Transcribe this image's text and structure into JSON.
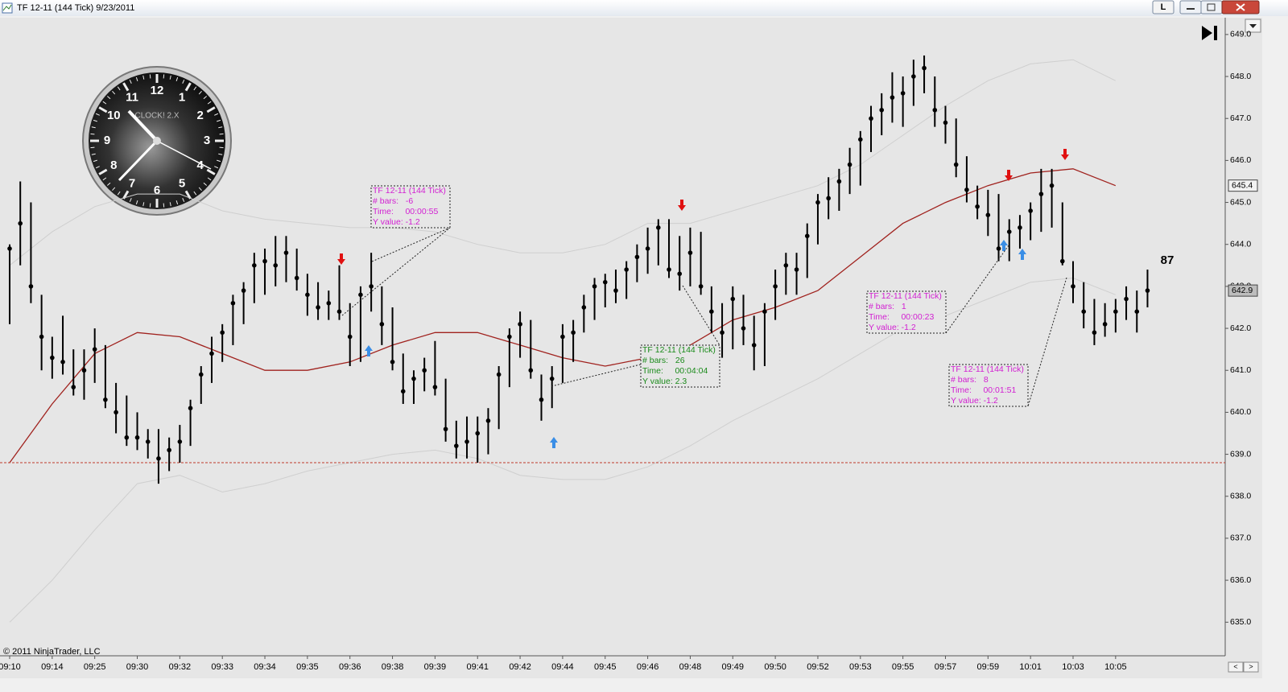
{
  "window_title": "TF 12-11 (144 Tick)  9/23/2011",
  "copyright": "© 2011 NinjaTrader, LLC",
  "clock": {
    "brand": "CLOCK! 2.X",
    "numerals": [
      "12",
      "1",
      "2",
      "3",
      "4",
      "5",
      "6",
      "7",
      "8",
      "9",
      "10",
      "11"
    ]
  },
  "chart_data": {
    "type": "ohlc",
    "categories": [
      "09:10",
      null,
      null,
      null,
      "09:14",
      null,
      null,
      null,
      "09:25",
      null,
      null,
      null,
      "09:30",
      null,
      null,
      null,
      "09:32",
      null,
      null,
      null,
      "09:33",
      null,
      null,
      null,
      "09:34",
      null,
      null,
      null,
      "09:35",
      null,
      null,
      null,
      "09:36",
      null,
      null,
      null,
      "09:38",
      null,
      null,
      null,
      "09:39",
      null,
      null,
      null,
      "09:41",
      null,
      null,
      null,
      "09:42",
      null,
      null,
      null,
      "09:44",
      null,
      null,
      null,
      "09:45",
      null,
      null,
      null,
      "09:46",
      null,
      null,
      null,
      "09:48",
      null,
      null,
      null,
      "09:49",
      null,
      null,
      null,
      "09:50",
      null,
      null,
      null,
      "09:52",
      null,
      null,
      null,
      "09:53",
      null,
      null,
      null,
      "09:55",
      null,
      null,
      null,
      "09:57",
      null,
      null,
      null,
      "09:59",
      null,
      null,
      null,
      "10:01",
      null,
      null,
      null,
      "10:03",
      null,
      null,
      null,
      "10:05",
      null,
      null,
      null
    ],
    "high": [
      644.0,
      645.5,
      645.0,
      642.8,
      641.8,
      642.3,
      641.5,
      641.5,
      642.0,
      641.6,
      640.7,
      640.4,
      640.0,
      639.6,
      639.6,
      639.4,
      639.7,
      640.3,
      641.1,
      641.8,
      642.1,
      642.8,
      643.1,
      643.8,
      643.9,
      644.2,
      644.2,
      643.9,
      643.3,
      643.1,
      642.9,
      643.5,
      642.6,
      643.0,
      643.8,
      643.0,
      642.5,
      641.4,
      641.0,
      641.3,
      641.7,
      640.8,
      639.8,
      639.9,
      639.9,
      640.1,
      641.1,
      642.0,
      642.4,
      642.2,
      640.9,
      641.1,
      642.1,
      642.2,
      642.8,
      643.2,
      643.3,
      643.4,
      643.6,
      644.0,
      644.4,
      644.6,
      644.6,
      644.2,
      644.4,
      644.3,
      643.0,
      642.6,
      643.0,
      642.8,
      642.3,
      642.6,
      643.4,
      643.8,
      643.8,
      644.5,
      645.2,
      645.6,
      645.8,
      646.3,
      646.7,
      647.3,
      647.6,
      648.1,
      648.0,
      648.4,
      648.5,
      648.0,
      647.3,
      647.0,
      646.1,
      645.4,
      645.3,
      645.2,
      644.6,
      644.7,
      645.0,
      645.8,
      645.8,
      645.0,
      643.6,
      643.1,
      642.7,
      642.6,
      642.7,
      643.0,
      642.9,
      643.4
    ],
    "low": [
      642.1,
      643.5,
      642.6,
      641.0,
      640.8,
      640.9,
      640.4,
      640.3,
      640.7,
      640.1,
      639.5,
      639.2,
      639.1,
      638.9,
      638.3,
      638.6,
      638.8,
      639.2,
      640.2,
      640.7,
      641.2,
      641.6,
      642.1,
      642.6,
      642.8,
      643.0,
      643.1,
      642.9,
      642.3,
      642.2,
      642.2,
      642.2,
      641.1,
      641.2,
      642.4,
      641.6,
      641.0,
      640.2,
      640.2,
      640.5,
      640.4,
      639.3,
      638.9,
      638.9,
      638.8,
      639.0,
      639.6,
      640.6,
      641.3,
      640.8,
      639.8,
      640.1,
      640.7,
      641.2,
      641.9,
      642.2,
      642.5,
      642.6,
      642.7,
      643.1,
      643.3,
      643.5,
      643.2,
      642.9,
      643.0,
      642.8,
      641.9,
      641.3,
      641.5,
      641.6,
      641.0,
      641.1,
      642.2,
      642.8,
      642.8,
      643.2,
      644.0,
      644.6,
      644.8,
      645.2,
      645.4,
      646.2,
      646.6,
      646.9,
      646.8,
      647.3,
      647.6,
      646.8,
      646.4,
      645.6,
      645.0,
      644.6,
      644.2,
      643.6,
      643.6,
      643.9,
      644.1,
      644.3,
      644.4,
      643.5,
      642.6,
      642.0,
      641.6,
      641.8,
      641.9,
      642.2,
      641.9,
      642.5
    ],
    "close": [
      643.9,
      644.5,
      643.0,
      641.8,
      641.3,
      641.2,
      640.6,
      641.0,
      641.5,
      640.3,
      640.0,
      639.4,
      639.4,
      639.3,
      638.9,
      639.1,
      639.3,
      640.1,
      640.9,
      641.4,
      641.9,
      642.6,
      642.9,
      643.5,
      643.6,
      643.5,
      643.8,
      643.2,
      642.8,
      642.5,
      642.6,
      642.4,
      641.8,
      642.8,
      643.0,
      642.1,
      641.2,
      640.5,
      640.8,
      641.0,
      640.6,
      639.6,
      639.2,
      639.3,
      639.5,
      639.8,
      640.9,
      641.8,
      642.1,
      641.0,
      640.3,
      640.8,
      641.8,
      641.9,
      642.5,
      643.0,
      643.1,
      642.9,
      643.4,
      643.7,
      643.9,
      644.4,
      643.4,
      643.3,
      643.8,
      643.0,
      642.4,
      641.9,
      642.7,
      642.0,
      641.6,
      642.4,
      643.0,
      643.5,
      643.4,
      644.2,
      645.0,
      645.1,
      645.5,
      645.9,
      646.5,
      647.0,
      647.2,
      647.5,
      647.6,
      648.0,
      648.2,
      647.2,
      646.9,
      645.9,
      645.3,
      644.9,
      644.7,
      643.9,
      644.3,
      644.4,
      644.8,
      645.2,
      645.4,
      643.6,
      643.0,
      642.4,
      641.9,
      642.1,
      642.4,
      642.7,
      642.4,
      642.9
    ],
    "overlay_x": [
      0,
      4,
      8,
      12,
      16,
      20,
      24,
      28,
      32,
      36,
      40,
      44,
      48,
      52,
      56,
      60,
      64,
      68,
      72,
      76,
      80,
      84,
      88,
      92,
      96,
      100,
      104
    ],
    "overlays": [
      {
        "color": "#cfcfcf",
        "values": [
          643.5,
          644.3,
          644.9,
          645.2,
          645.2,
          644.8,
          644.6,
          644.5,
          644.4,
          644.4,
          644.3,
          644.0,
          643.8,
          643.8,
          644.0,
          644.5,
          644.5,
          644.8,
          645.1,
          645.4,
          645.9,
          646.6,
          647.3,
          647.9,
          648.3,
          648.4,
          647.9
        ]
      },
      {
        "color": "#cfcfcf",
        "values": [
          635.0,
          636.0,
          637.2,
          638.3,
          638.5,
          638.1,
          638.3,
          638.6,
          638.8,
          639.0,
          639.1,
          638.9,
          638.5,
          638.4,
          638.4,
          638.7,
          639.2,
          639.8,
          640.3,
          640.8,
          641.4,
          642.0,
          642.3,
          642.7,
          643.1,
          643.2,
          642.8
        ]
      },
      {
        "color": "#a0221e",
        "values": [
          638.8,
          640.2,
          641.4,
          641.9,
          641.8,
          641.4,
          641.0,
          641.0,
          641.2,
          641.6,
          641.9,
          641.9,
          641.6,
          641.3,
          641.1,
          641.3,
          641.6,
          642.2,
          642.5,
          642.9,
          643.7,
          644.5,
          645.0,
          645.4,
          645.7,
          645.8,
          645.4
        ]
      }
    ],
    "hline": 638.8,
    "hline_color": "#c0392b",
    "bar_color": "#000000",
    "ylim": [
      634.2,
      649.4
    ],
    "yticks": [
      {
        "value": 649,
        "label": "649.0"
      },
      {
        "value": 648,
        "label": "648.0"
      },
      {
        "value": 647,
        "label": "647.0"
      },
      {
        "value": 646,
        "label": "646.0"
      },
      {
        "value": 645,
        "label": "645.0"
      },
      {
        "value": 644,
        "label": "644.0"
      },
      {
        "value": 643,
        "label": "643.0"
      },
      {
        "value": 642,
        "label": "642.0"
      },
      {
        "value": 641,
        "label": "641.0"
      },
      {
        "value": 640,
        "label": "640.0"
      },
      {
        "value": 639,
        "label": "639.0"
      },
      {
        "value": 638,
        "label": "638.0"
      },
      {
        "value": 637,
        "label": "637.0"
      },
      {
        "value": 636,
        "label": "636.0"
      },
      {
        "value": 635,
        "label": "635.0"
      }
    ],
    "price_markers": [
      645.4,
      642.9
    ],
    "counter": 87,
    "annotations": [
      {
        "color": "#d21fd2",
        "lines": [
          "TF 12-11 (144 Tick)",
          "# bars:   -6",
          "Time:     00:00:55",
          "Y value: -1.2"
        ]
      },
      {
        "color": "#1a8a1a",
        "lines": [
          "TF 12-11 (144 Tick)",
          "# bars:   26",
          "Time:     00:04:04",
          "Y value: 2.3"
        ]
      },
      {
        "color": "#d21fd2",
        "lines": [
          "TF 12-11 (144 Tick)",
          "# bars:   1",
          "Time:     00:00:23",
          "Y value: -1.2"
        ]
      },
      {
        "color": "#d21fd2",
        "lines": [
          "TF 12-11 (144 Tick)",
          "# bars:   8",
          "Time:     00:01:51",
          "Y value: -1.2"
        ]
      }
    ]
  }
}
